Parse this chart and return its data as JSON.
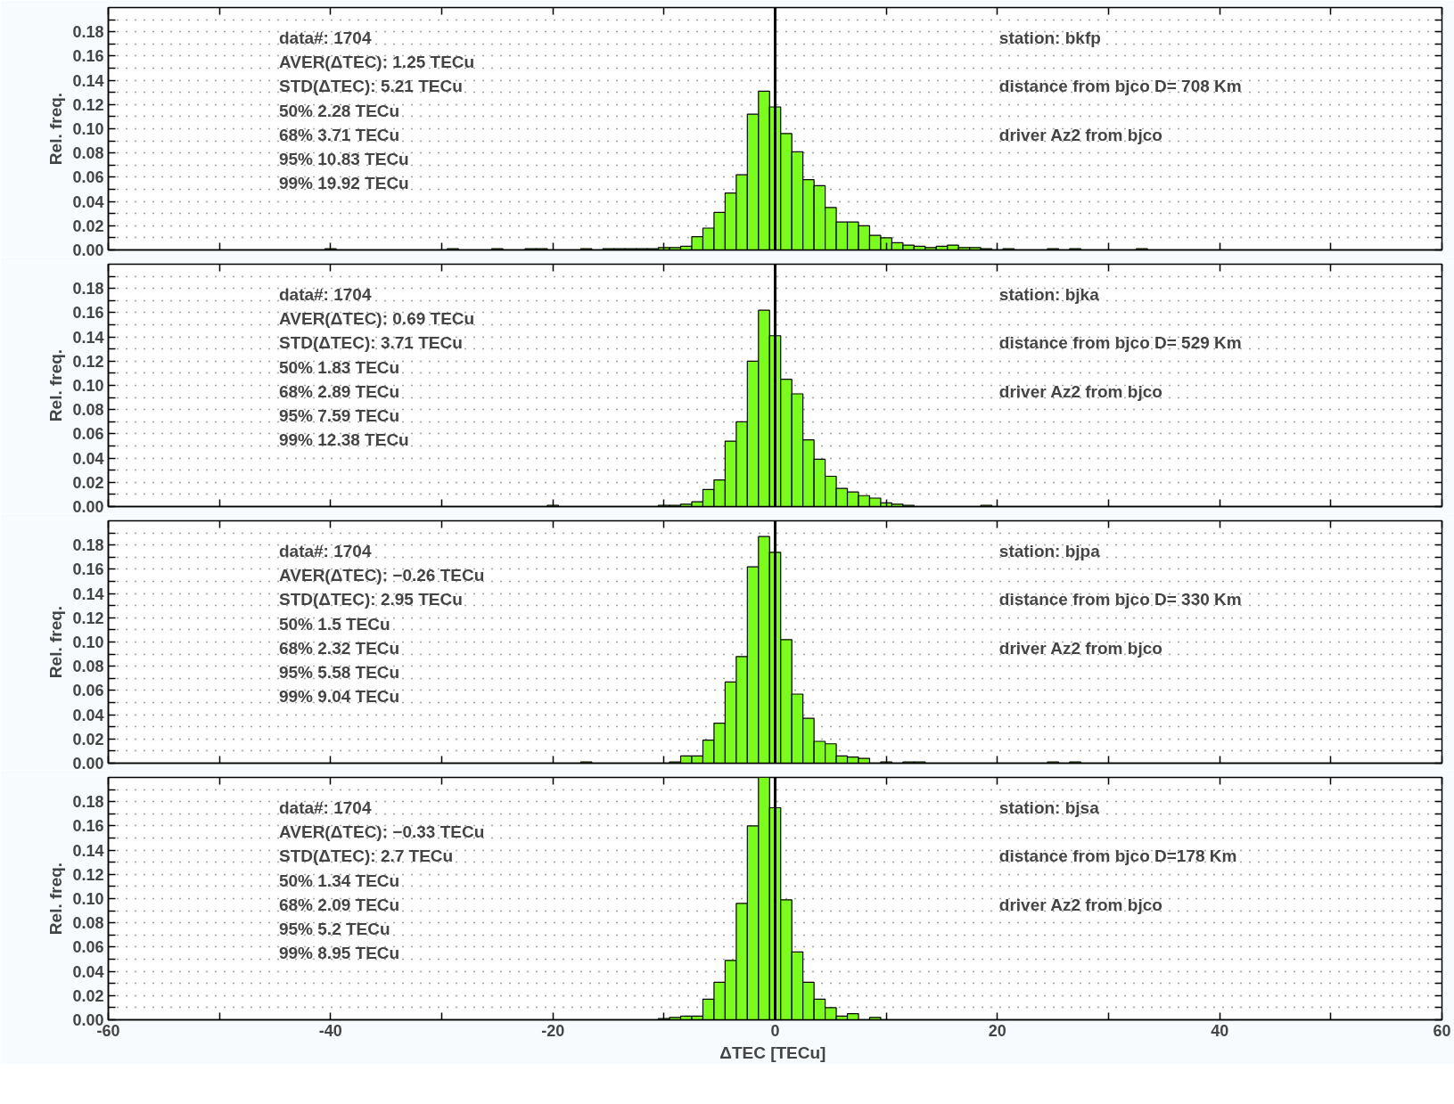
{
  "chart_data": [
    {
      "type": "histogram",
      "ylabel": "Rel. freq.",
      "color": "#7cfc1e",
      "grid": "y",
      "tick_labels": "y",
      "bins": [
        -40.5,
        -39.5,
        -38.5,
        -37.5,
        -36.5,
        -35.5,
        -34.5,
        -33.5,
        -32.5,
        -31.5,
        -30.5,
        -29.5,
        -28.5,
        -27.5,
        -26.5,
        -25.5,
        -24.5,
        -23.5,
        -22.5,
        -21.5,
        -20.5,
        -19.5,
        -18.5,
        -17.5,
        -16.5,
        -15.5,
        -14.5,
        -13.5,
        -12.5,
        -11.5,
        -10.5,
        -9.5,
        -8.5,
        -7.5,
        -6.5,
        -5.5,
        -4.5,
        -3.5,
        -2.5,
        -1.5,
        -0.5,
        0.5,
        1.5,
        2.5,
        3.5,
        4.5,
        5.5,
        6.5,
        7.5,
        8.5,
        9.5,
        10.5,
        11.5,
        12.5,
        13.5,
        14.5,
        15.5,
        16.5,
        17.5,
        18.5,
        19.5,
        20.5,
        21.5,
        22.5,
        23.5,
        24.5,
        25.5,
        26.5,
        27.5,
        28.5,
        29.5,
        30.5,
        31.5,
        32.5,
        33.5
      ],
      "values": [
        0.001,
        0,
        0,
        0,
        0,
        0,
        0,
        0,
        0,
        0,
        0,
        0.001,
        0,
        0,
        0,
        0.001,
        0,
        0,
        0.001,
        0.001,
        0,
        0,
        0,
        0.001,
        0,
        0.001,
        0.001,
        0.001,
        0.001,
        0.001,
        0.002,
        0.002,
        0.003,
        0.011,
        0.018,
        0.031,
        0.047,
        0.062,
        0.112,
        0.131,
        0.118,
        0.096,
        0.081,
        0.058,
        0.053,
        0.035,
        0.023,
        0.023,
        0.02,
        0.012,
        0.01,
        0.006,
        0.004,
        0.003,
        0.002,
        0.003,
        0.004,
        0.002,
        0.002,
        0.001,
        0,
        0.001,
        0,
        0,
        0,
        0.001,
        0,
        0.001,
        0,
        0,
        0,
        0,
        0,
        0.001
      ],
      "xlim": [
        -60,
        60
      ],
      "xticks": [
        -60,
        {
          "value": -50,
          "label": null
        },
        -40,
        {
          "value": -30,
          "label": null
        },
        -20,
        {
          "value": -10,
          "label": null
        },
        0,
        {
          "value": 10,
          "label": null
        },
        20,
        {
          "value": 30,
          "label": null
        },
        40,
        {
          "value": 50,
          "label": null
        },
        60
      ],
      "ylim": [
        0,
        0.2
      ],
      "yticks": [
        {
          "value": 0,
          "label": "0.00"
        },
        {
          "value": 0.01,
          "label": null
        },
        {
          "value": 0.02,
          "label": "0.02"
        },
        {
          "value": 0.03,
          "label": null
        },
        {
          "value": 0.04,
          "label": "0.04"
        },
        {
          "value": 0.05,
          "label": null
        },
        {
          "value": 0.06,
          "label": "0.06"
        },
        {
          "value": 0.07,
          "label": null
        },
        {
          "value": 0.08,
          "label": "0.08"
        },
        {
          "value": 0.09,
          "label": null
        },
        {
          "value": 0.1,
          "label": "0.10"
        },
        {
          "value": 0.11,
          "label": null
        },
        {
          "value": 0.12,
          "label": "0.12"
        },
        {
          "value": 0.13,
          "label": null
        },
        {
          "value": 0.14,
          "label": "0.14"
        },
        {
          "value": 0.15,
          "label": null
        },
        {
          "value": 0.16,
          "label": "0.16"
        },
        {
          "value": 0.17,
          "label": null
        },
        {
          "value": 0.18,
          "label": "0.18"
        },
        {
          "value": 0.19,
          "label": null
        }
      ],
      "ref_lines": [
        {
          "axis": "x",
          "value": 0,
          "color": "#000000"
        }
      ],
      "annotations": [
        "data#:  1704",
        "AVER(ΔTEC):    1.25 TECu",
        "STD(ΔTEC):   5.21 TECu",
        "50%  2.28 TECu",
        "68%  3.71 TECu",
        "95%  10.83 TECu",
        "99%  19.92 TECu",
        "station:  bkfp",
        "distance from bjco  D= 708 Km",
        "driver  Az2 from bjco"
      ]
    },
    {
      "type": "histogram",
      "ylabel": "Rel. freq.",
      "color": "#7cfc1e",
      "grid": "y",
      "tick_labels": "y",
      "bins": [
        -40.5,
        -39.5,
        -38.5,
        -37.5,
        -36.5,
        -35.5,
        -34.5,
        -33.5,
        -32.5,
        -31.5,
        -30.5,
        -29.5,
        -28.5,
        -27.5,
        -26.5,
        -25.5,
        -24.5,
        -23.5,
        -22.5,
        -21.5,
        -20.5,
        -19.5,
        -18.5,
        -17.5,
        -16.5,
        -15.5,
        -14.5,
        -13.5,
        -12.5,
        -11.5,
        -10.5,
        -9.5,
        -8.5,
        -7.5,
        -6.5,
        -5.5,
        -4.5,
        -3.5,
        -2.5,
        -1.5,
        -0.5,
        0.5,
        1.5,
        2.5,
        3.5,
        4.5,
        5.5,
        6.5,
        7.5,
        8.5,
        9.5,
        10.5,
        11.5,
        12.5,
        13.5,
        14.5,
        15.5,
        16.5,
        17.5,
        18.5,
        19.5,
        20.5,
        21.5,
        22.5,
        23.5,
        24.5,
        25.5,
        26.5,
        27.5,
        28.5,
        29.5,
        30.5,
        31.5,
        32.5,
        33.5
      ],
      "values": [
        0,
        0,
        0,
        0,
        0,
        0,
        0,
        0,
        0,
        0,
        0,
        0,
        0,
        0,
        0,
        0,
        0,
        0,
        0,
        0,
        0.001,
        0,
        0,
        0,
        0,
        0,
        0,
        0,
        0,
        0,
        0.001,
        0.001,
        0.002,
        0.004,
        0.014,
        0.022,
        0.054,
        0.07,
        0.12,
        0.162,
        0.141,
        0.105,
        0.093,
        0.055,
        0.039,
        0.025,
        0.015,
        0.012,
        0.009,
        0.007,
        0.003,
        0.002,
        0.001,
        0,
        0,
        0,
        0,
        0,
        0,
        0.001,
        0,
        0,
        0,
        0,
        0,
        0,
        0,
        0,
        0,
        0,
        0,
        0,
        0,
        0
      ],
      "xlim": [
        -60,
        60
      ],
      "xticks": [
        -60,
        {
          "value": -50,
          "label": null
        },
        -40,
        {
          "value": -30,
          "label": null
        },
        -20,
        {
          "value": -10,
          "label": null
        },
        0,
        {
          "value": 10,
          "label": null
        },
        20,
        {
          "value": 30,
          "label": null
        },
        40,
        {
          "value": 50,
          "label": null
        },
        60
      ],
      "ylim": [
        0,
        0.2
      ],
      "yticks": [
        {
          "value": 0,
          "label": "0.00"
        },
        {
          "value": 0.01,
          "label": null
        },
        {
          "value": 0.02,
          "label": "0.02"
        },
        {
          "value": 0.03,
          "label": null
        },
        {
          "value": 0.04,
          "label": "0.04"
        },
        {
          "value": 0.05,
          "label": null
        },
        {
          "value": 0.06,
          "label": "0.06"
        },
        {
          "value": 0.07,
          "label": null
        },
        {
          "value": 0.08,
          "label": "0.08"
        },
        {
          "value": 0.09,
          "label": null
        },
        {
          "value": 0.1,
          "label": "0.10"
        },
        {
          "value": 0.11,
          "label": null
        },
        {
          "value": 0.12,
          "label": "0.12"
        },
        {
          "value": 0.13,
          "label": null
        },
        {
          "value": 0.14,
          "label": "0.14"
        },
        {
          "value": 0.15,
          "label": null
        },
        {
          "value": 0.16,
          "label": "0.16"
        },
        {
          "value": 0.17,
          "label": null
        },
        {
          "value": 0.18,
          "label": "0.18"
        },
        {
          "value": 0.19,
          "label": null
        }
      ],
      "ref_lines": [
        {
          "axis": "x",
          "value": 0,
          "color": "#000000"
        }
      ],
      "annotations": [
        "data#:  1704",
        "AVER(ΔTEC):    0.69 TECu",
        "STD(ΔTEC):   3.71 TECu",
        "50%  1.83 TECu",
        "68%  2.89 TECu",
        "95%  7.59 TECu",
        "99%  12.38 TECu",
        "station:  bjka",
        "distance from bjco  D= 529 Km",
        "driver  Az2 from bjco"
      ]
    },
    {
      "type": "histogram",
      "ylabel": "Rel. freq.",
      "color": "#7cfc1e",
      "grid": "y",
      "tick_labels": "y",
      "bins": [
        -40.5,
        -39.5,
        -38.5,
        -37.5,
        -36.5,
        -35.5,
        -34.5,
        -33.5,
        -32.5,
        -31.5,
        -30.5,
        -29.5,
        -28.5,
        -27.5,
        -26.5,
        -25.5,
        -24.5,
        -23.5,
        -22.5,
        -21.5,
        -20.5,
        -19.5,
        -18.5,
        -17.5,
        -16.5,
        -15.5,
        -14.5,
        -13.5,
        -12.5,
        -11.5,
        -10.5,
        -9.5,
        -8.5,
        -7.5,
        -6.5,
        -5.5,
        -4.5,
        -3.5,
        -2.5,
        -1.5,
        -0.5,
        0.5,
        1.5,
        2.5,
        3.5,
        4.5,
        5.5,
        6.5,
        7.5,
        8.5,
        9.5,
        10.5,
        11.5,
        12.5,
        13.5,
        14.5,
        15.5,
        16.5,
        17.5,
        18.5,
        19.5,
        20.5,
        21.5,
        22.5,
        23.5,
        24.5,
        25.5,
        26.5,
        27.5,
        28.5,
        29.5,
        30.5,
        31.5,
        32.5,
        33.5
      ],
      "values": [
        0,
        0,
        0,
        0,
        0,
        0,
        0,
        0,
        0,
        0,
        0,
        0,
        0,
        0,
        0,
        0,
        0,
        0,
        0,
        0,
        0,
        0,
        0,
        0.001,
        0,
        0,
        0,
        0,
        0,
        0,
        0,
        0.001,
        0.006,
        0.006,
        0.019,
        0.033,
        0.067,
        0.088,
        0.162,
        0.187,
        0.174,
        0.102,
        0.057,
        0.037,
        0.018,
        0.016,
        0.006,
        0.005,
        0.004,
        0,
        0.001,
        0,
        0.001,
        0.001,
        0,
        0,
        0,
        0,
        0,
        0,
        0,
        0,
        0,
        0,
        0,
        0.001,
        0,
        0.001,
        0,
        0,
        0,
        0,
        0,
        0
      ],
      "xlim": [
        -60,
        60
      ],
      "xticks": [
        -60,
        {
          "value": -50,
          "label": null
        },
        -40,
        {
          "value": -30,
          "label": null
        },
        -20,
        {
          "value": -10,
          "label": null
        },
        0,
        {
          "value": 10,
          "label": null
        },
        20,
        {
          "value": 30,
          "label": null
        },
        40,
        {
          "value": 50,
          "label": null
        },
        60
      ],
      "ylim": [
        0,
        0.2
      ],
      "yticks": [
        {
          "value": 0,
          "label": "0.00"
        },
        {
          "value": 0.01,
          "label": null
        },
        {
          "value": 0.02,
          "label": "0.02"
        },
        {
          "value": 0.03,
          "label": null
        },
        {
          "value": 0.04,
          "label": "0.04"
        },
        {
          "value": 0.05,
          "label": null
        },
        {
          "value": 0.06,
          "label": "0.06"
        },
        {
          "value": 0.07,
          "label": null
        },
        {
          "value": 0.08,
          "label": "0.08"
        },
        {
          "value": 0.09,
          "label": null
        },
        {
          "value": 0.1,
          "label": "0.10"
        },
        {
          "value": 0.11,
          "label": null
        },
        {
          "value": 0.12,
          "label": "0.12"
        },
        {
          "value": 0.13,
          "label": null
        },
        {
          "value": 0.14,
          "label": "0.14"
        },
        {
          "value": 0.15,
          "label": null
        },
        {
          "value": 0.16,
          "label": "0.16"
        },
        {
          "value": 0.17,
          "label": null
        },
        {
          "value": 0.18,
          "label": "0.18"
        },
        {
          "value": 0.19,
          "label": null
        }
      ],
      "ref_lines": [
        {
          "axis": "x",
          "value": 0,
          "color": "#000000"
        }
      ],
      "annotations": [
        "data#:  1704",
        "AVER(ΔTEC):    −0.26 TECu",
        "STD(ΔTEC):   2.95 TECu",
        "50%  1.5 TECu",
        "68%  2.32 TECu",
        "95%  5.58 TECu",
        "99%  9.04 TECu",
        "station:  bjpa",
        "distance from bjco  D= 330 Km",
        "driver  Az2 from bjco"
      ]
    },
    {
      "type": "histogram",
      "ylabel": "Rel. freq.",
      "xlabel": "ΔTEC  [TECu]",
      "color": "#7cfc1e",
      "grid": "y",
      "bins": [
        -40.5,
        -39.5,
        -38.5,
        -37.5,
        -36.5,
        -35.5,
        -34.5,
        -33.5,
        -32.5,
        -31.5,
        -30.5,
        -29.5,
        -28.5,
        -27.5,
        -26.5,
        -25.5,
        -24.5,
        -23.5,
        -22.5,
        -21.5,
        -20.5,
        -19.5,
        -18.5,
        -17.5,
        -16.5,
        -15.5,
        -14.5,
        -13.5,
        -12.5,
        -11.5,
        -10.5,
        -9.5,
        -8.5,
        -7.5,
        -6.5,
        -5.5,
        -4.5,
        -3.5,
        -2.5,
        -1.5,
        -0.5,
        0.5,
        1.5,
        2.5,
        3.5,
        4.5,
        5.5,
        6.5,
        7.5,
        8.5,
        9.5,
        10.5,
        11.5,
        12.5,
        13.5,
        14.5,
        15.5,
        16.5,
        17.5,
        18.5,
        19.5,
        20.5,
        21.5,
        22.5,
        23.5,
        24.5,
        25.5,
        26.5,
        27.5,
        28.5,
        29.5,
        30.5,
        31.5,
        32.5,
        33.5
      ],
      "values": [
        0,
        0,
        0,
        0,
        0,
        0,
        0,
        0,
        0,
        0,
        0,
        0,
        0,
        0,
        0,
        0,
        0,
        0,
        0,
        0,
        0,
        0,
        0,
        0,
        0,
        0,
        0,
        0,
        0,
        0,
        0.001,
        0.002,
        0.003,
        0.003,
        0.017,
        0.031,
        0.049,
        0.096,
        0.16,
        0.2,
        0.175,
        0.099,
        0.056,
        0.031,
        0.017,
        0.01,
        0.003,
        0.005,
        0,
        0.002,
        0,
        0,
        0,
        0,
        0,
        0,
        0,
        0,
        0,
        0,
        0,
        0,
        0,
        0,
        0,
        0,
        0,
        0,
        0,
        0,
        0,
        0,
        0,
        0
      ],
      "xlim": [
        -60,
        60
      ],
      "xticks": [
        -60,
        {
          "value": -50,
          "label": null
        },
        -40,
        {
          "value": -30,
          "label": null
        },
        -20,
        {
          "value": -10,
          "label": null
        },
        0,
        {
          "value": 10,
          "label": null
        },
        20,
        {
          "value": 30,
          "label": null
        },
        40,
        {
          "value": 50,
          "label": null
        },
        60
      ],
      "ylim": [
        0,
        0.2
      ],
      "yticks": [
        {
          "value": 0,
          "label": "0.00"
        },
        {
          "value": 0.01,
          "label": null
        },
        {
          "value": 0.02,
          "label": "0.02"
        },
        {
          "value": 0.03,
          "label": null
        },
        {
          "value": 0.04,
          "label": "0.04"
        },
        {
          "value": 0.05,
          "label": null
        },
        {
          "value": 0.06,
          "label": "0.06"
        },
        {
          "value": 0.07,
          "label": null
        },
        {
          "value": 0.08,
          "label": "0.08"
        },
        {
          "value": 0.09,
          "label": null
        },
        {
          "value": 0.1,
          "label": "0.10"
        },
        {
          "value": 0.11,
          "label": null
        },
        {
          "value": 0.12,
          "label": "0.12"
        },
        {
          "value": 0.13,
          "label": null
        },
        {
          "value": 0.14,
          "label": "0.14"
        },
        {
          "value": 0.15,
          "label": null
        },
        {
          "value": 0.16,
          "label": "0.16"
        },
        {
          "value": 0.17,
          "label": null
        },
        {
          "value": 0.18,
          "label": "0.18"
        },
        {
          "value": 0.19,
          "label": null
        }
      ],
      "ref_lines": [
        {
          "axis": "x",
          "value": 0,
          "color": "#000000"
        }
      ],
      "annotations": [
        "data#:  1704",
        "AVER(ΔTEC):    −0.33 TECu",
        "STD(ΔTEC):   2.7 TECu",
        "50%  1.34 TECu",
        "68%  2.09 TECu",
        "95%  5.2 TECu",
        "99%  8.95 TECu",
        "station:  bjsa",
        "distance from bjco  D=178 Km",
        "driver  Az2 from bjco"
      ]
    }
  ]
}
